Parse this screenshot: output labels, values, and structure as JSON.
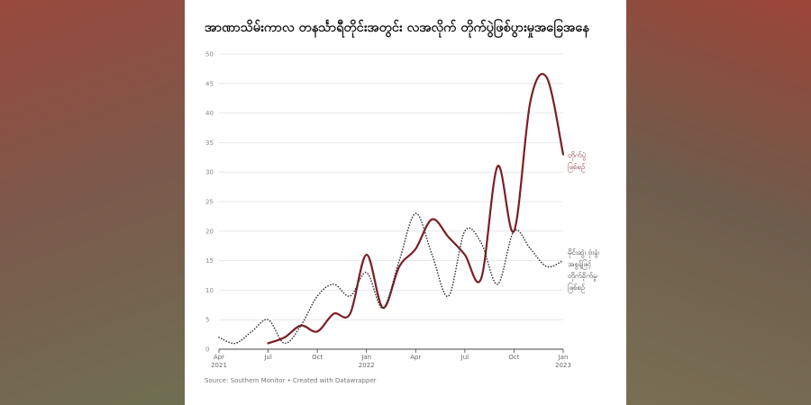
{
  "chart_data": {
    "type": "line",
    "title": "အာဏာသိမ်းကာလ တနင်္သာရီတိုင်းအတွင်း လအလိုက် တိုက်ပွဲဖြစ်ပွားမှုအခြေအနေ",
    "source": "Source: Southern Monitor • Created with Datawrapper",
    "ylim": [
      0,
      50
    ],
    "yticks": [
      0,
      5,
      10,
      15,
      20,
      25,
      30,
      35,
      40,
      45,
      50
    ],
    "xticks": [
      {
        "x": "2021-04",
        "label": "Apr",
        "sub": "2021"
      },
      {
        "x": "2021-07",
        "label": "Jul",
        "sub": ""
      },
      {
        "x": "2021-10",
        "label": "Oct",
        "sub": ""
      },
      {
        "x": "2022-01",
        "label": "Jan",
        "sub": "2022"
      },
      {
        "x": "2022-04",
        "label": "Apr",
        "sub": ""
      },
      {
        "x": "2022-07",
        "label": "Jul",
        "sub": ""
      },
      {
        "x": "2022-10",
        "label": "Oct",
        "sub": ""
      },
      {
        "x": "2023-01",
        "label": "Jan",
        "sub": "2023"
      }
    ],
    "series": [
      {
        "name_lines": [
          "တိုက်ပွဲ",
          "ဖြစ်စဉ်"
        ],
        "color": "#7b1f24",
        "style": "solid",
        "points": [
          [
            "2021-07",
            1
          ],
          [
            "2021-08",
            2
          ],
          [
            "2021-09",
            4
          ],
          [
            "2021-10",
            3
          ],
          [
            "2021-11",
            6
          ],
          [
            "2021-12",
            6
          ],
          [
            "2022-01",
            16
          ],
          [
            "2022-02",
            7
          ],
          [
            "2022-03",
            14
          ],
          [
            "2022-04",
            17
          ],
          [
            "2022-05",
            22
          ],
          [
            "2022-06",
            19
          ],
          [
            "2022-07",
            16
          ],
          [
            "2022-08",
            12
          ],
          [
            "2022-09",
            31
          ],
          [
            "2022-10",
            20
          ],
          [
            "2022-11",
            42
          ],
          [
            "2022-12",
            46
          ],
          [
            "2023-01",
            33
          ]
        ]
      },
      {
        "name_lines": [
          "မိုင်းဆွဲ၊ ဗုံးခွဲ၊",
          "အစွန့်ဖြင့်",
          "တိုက်ခိုက်မှု",
          "ဖြစ်စဉ်"
        ],
        "color": "#333333",
        "style": "dotted",
        "points": [
          [
            "2021-04",
            2
          ],
          [
            "2021-05",
            1
          ],
          [
            "2021-06",
            3
          ],
          [
            "2021-07",
            5
          ],
          [
            "2021-08",
            1
          ],
          [
            "2021-09",
            4
          ],
          [
            "2021-10",
            9
          ],
          [
            "2021-11",
            11
          ],
          [
            "2021-12",
            9
          ],
          [
            "2022-01",
            13
          ],
          [
            "2022-02",
            7
          ],
          [
            "2022-03",
            15
          ],
          [
            "2022-04",
            23
          ],
          [
            "2022-05",
            16
          ],
          [
            "2022-06",
            9
          ],
          [
            "2022-07",
            20
          ],
          [
            "2022-08",
            18
          ],
          [
            "2022-09",
            11
          ],
          [
            "2022-10",
            20
          ],
          [
            "2022-11",
            17
          ],
          [
            "2022-12",
            14
          ],
          [
            "2023-01",
            15
          ]
        ]
      }
    ]
  }
}
